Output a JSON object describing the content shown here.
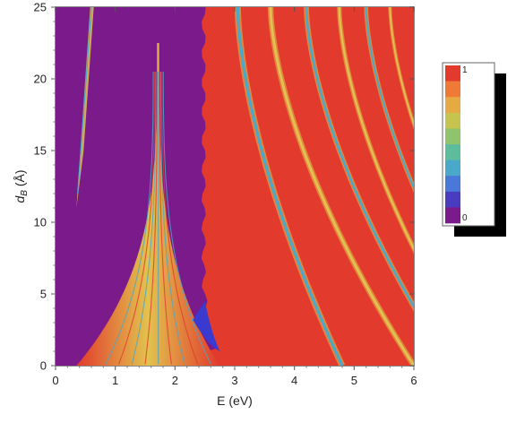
{
  "chart_data": {
    "type": "heatmap",
    "title": "",
    "xlabel": "E (eV)",
    "ylabel_main": "d",
    "ylabel_sub": "B",
    "ylabel_unit": " (Å)",
    "xlim": [
      0,
      6
    ],
    "ylim": [
      0,
      25
    ],
    "x_ticks": [
      {
        "value": 0,
        "label": "0"
      },
      {
        "value": 1,
        "label": "1"
      },
      {
        "value": 2,
        "label": "2"
      },
      {
        "value": 3,
        "label": "3"
      },
      {
        "value": 4,
        "label": "4"
      },
      {
        "value": 5,
        "label": "5"
      },
      {
        "value": 6,
        "label": "6"
      }
    ],
    "y_ticks": [
      {
        "value": 0,
        "label": "0"
      },
      {
        "value": 5,
        "label": "5"
      },
      {
        "value": 10,
        "label": "10"
      },
      {
        "value": 15,
        "label": "15"
      },
      {
        "value": 20,
        "label": "20"
      },
      {
        "value": 25,
        "label": "25"
      }
    ],
    "colorbar": {
      "min": 0,
      "max": 1,
      "min_label": "0",
      "max_label": "1",
      "colors": [
        "#7b1a8a",
        "#4a3cc0",
        "#4a78d8",
        "#4aa8c8",
        "#5cbc9c",
        "#8ec46c",
        "#c6c44e",
        "#e6aa42",
        "#ee7a36",
        "#e23a2c"
      ]
    },
    "colors": {
      "low": "#7b1a8a",
      "high": "#e23a2c",
      "mid_band": "#e2c24e",
      "cyan_band": "#4aa8c8",
      "blue_dip": "#3a3ad0"
    },
    "features": {
      "gap_region": {
        "x_start": 0.0,
        "x_end": 2.55,
        "value": 0
      },
      "resonance_cone_center_E": 1.72,
      "resonance_cone_top_d": 22.5,
      "faint_branch": {
        "E_bottom": 0.35,
        "E_top": 0.58,
        "d_bottom": 11,
        "d_top": 25
      },
      "dark_bands": [
        {
          "E_at_d25": 3.05,
          "E_at_d0": 4.8
        },
        {
          "E_at_d25": 3.6,
          "E_at_d0": 6.0
        },
        {
          "E_at_d25": 4.2,
          "E_at_d0": 6.6
        },
        {
          "E_at_d25": 4.75,
          "E_at_d0": 7.1
        },
        {
          "E_at_d25": 5.2,
          "E_at_d0": 7.6
        },
        {
          "E_at_d25": 5.6,
          "E_at_d0": 8.0
        }
      ]
    }
  }
}
